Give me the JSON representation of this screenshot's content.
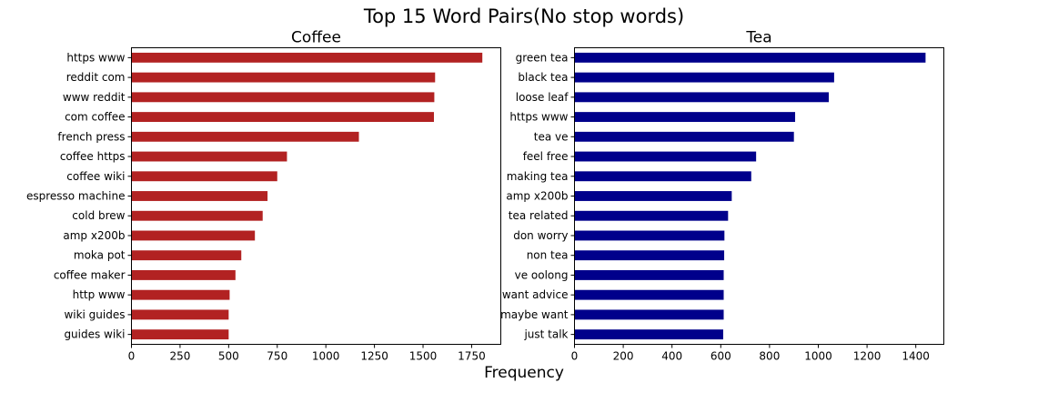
{
  "figure": {
    "title": "Top 15 Word Pairs(No stop words)",
    "xlabel": "Frequency"
  },
  "chart_data": [
    {
      "type": "bar",
      "orientation": "horizontal",
      "title": "Coffee",
      "color": "#b22222",
      "xlim": [
        0,
        1900
      ],
      "xticks": [
        0,
        250,
        500,
        750,
        1000,
        1250,
        1500,
        1750
      ],
      "grid": false,
      "categories": [
        "https www",
        "reddit com",
        "www reddit",
        "com coffee",
        "french press",
        "coffee https",
        "coffee wiki",
        "espresso machine",
        "cold brew",
        "amp x200b",
        "moka pot",
        "coffee maker",
        "http www",
        "wiki guides",
        "guides wiki"
      ],
      "values": [
        1805,
        1562,
        1558,
        1556,
        1170,
        800,
        750,
        700,
        675,
        635,
        565,
        535,
        505,
        500,
        500
      ]
    },
    {
      "type": "bar",
      "orientation": "horizontal",
      "title": "Tea",
      "color": "#00008b",
      "xlim": [
        0,
        1515
      ],
      "xticks": [
        0,
        200,
        400,
        600,
        800,
        1000,
        1200,
        1400
      ],
      "grid": false,
      "categories": [
        "green tea",
        "black tea",
        "loose leaf",
        "https www",
        "tea ve",
        "feel free",
        "making tea",
        "amp x200b",
        "tea related",
        "don worry",
        "non tea",
        "ve oolong",
        "want advice",
        "maybe want",
        "just talk"
      ],
      "values": [
        1440,
        1065,
        1043,
        905,
        900,
        745,
        725,
        645,
        630,
        615,
        614,
        612,
        612,
        612,
        610
      ]
    }
  ]
}
